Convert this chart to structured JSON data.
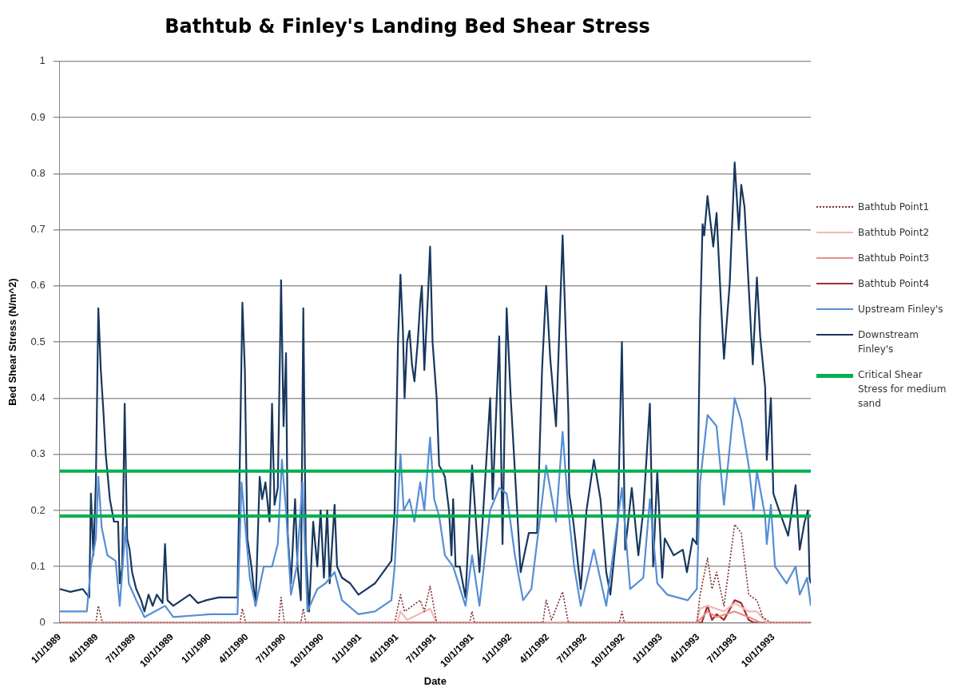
{
  "chart_data": {
    "type": "line",
    "title": "Bathtub & Finley's Landing Bed Shear Stress",
    "xlabel": "Date",
    "ylabel": "Bed Shear Stress (N/m^2)",
    "xlim": [
      "1989-01-01",
      "1993-12-31"
    ],
    "xticks": [
      {
        "value": "1989-01-01",
        "label": "1/1/1989"
      },
      {
        "value": "1989-04-01",
        "label": "4/1/1989"
      },
      {
        "value": "1989-07-01",
        "label": "7/1/1989"
      },
      {
        "value": "1989-10-01",
        "label": "10/1/1989"
      },
      {
        "value": "1990-01-01",
        "label": "1/1/1990"
      },
      {
        "value": "1990-04-01",
        "label": "4/1/1990"
      },
      {
        "value": "1990-07-01",
        "label": "7/1/1990"
      },
      {
        "value": "1990-10-01",
        "label": "10/1/1990"
      },
      {
        "value": "1991-01-01",
        "label": "1/1/1991"
      },
      {
        "value": "1991-04-01",
        "label": "4/1/1991"
      },
      {
        "value": "1991-07-01",
        "label": "7/1/1991"
      },
      {
        "value": "1991-10-01",
        "label": "10/1/1991"
      },
      {
        "value": "1992-01-01",
        "label": "1/1/1992"
      },
      {
        "value": "1992-04-01",
        "label": "4/1/1992"
      },
      {
        "value": "1992-07-01",
        "label": "7/1/1992"
      },
      {
        "value": "1992-10-01",
        "label": "10/1/1992"
      },
      {
        "value": "1993-01-01",
        "label": "1/1/1993"
      },
      {
        "value": "1993-04-01",
        "label": "4/1/1993"
      },
      {
        "value": "1993-07-01",
        "label": "7/1/1993"
      },
      {
        "value": "1993-10-01",
        "label": "10/1/1993"
      }
    ],
    "ylim": [
      0,
      1
    ],
    "yticks": [
      0,
      0.1,
      0.2,
      0.3,
      0.4,
      0.5,
      0.6,
      0.7,
      0.8,
      0.9,
      1
    ],
    "grid": "y",
    "legend": "right",
    "marker": "none",
    "ref_lines": [
      {
        "axis": "y",
        "value": 0.27,
        "label": "Critical Shear Stress for medium sand",
        "color": "#00b050"
      },
      {
        "axis": "y",
        "value": 0.19,
        "color": "#00b050"
      }
    ],
    "series": [
      {
        "name": "Bathtub Point1",
        "color": "#7b2c2c",
        "line_style": "dotted",
        "x": [
          "1989-01-01",
          "1989-03-30",
          "1989-04-05",
          "1989-04-15",
          "1990-03-15",
          "1990-03-21",
          "1990-03-29",
          "1990-06-17",
          "1990-06-23",
          "1990-07-01",
          "1990-08-10",
          "1990-08-16",
          "1990-08-22",
          "1991-03-26",
          "1991-04-09",
          "1991-04-19",
          "1991-05-27",
          "1991-06-06",
          "1991-06-20",
          "1991-07-06",
          "1991-09-24",
          "1991-09-30",
          "1991-10-06",
          "1992-03-20",
          "1992-03-28",
          "1992-04-10",
          "1992-05-07",
          "1992-05-21",
          "1992-09-22",
          "1992-09-28",
          "1992-10-04",
          "1993-03-29",
          "1993-04-06",
          "1993-04-24",
          "1993-05-05",
          "1993-05-16",
          "1993-06-03",
          "1993-06-29",
          "1993-07-15",
          "1993-08-02",
          "1993-08-22",
          "1993-09-05",
          "1993-09-25",
          "1993-12-31"
        ],
        "values": [
          0,
          0,
          0.03,
          0,
          0,
          0.025,
          0,
          0,
          0.045,
          0,
          0,
          0.025,
          0,
          0,
          0.05,
          0.02,
          0.04,
          0.02,
          0.065,
          0,
          0,
          0.02,
          0,
          0,
          0.04,
          0.005,
          0.055,
          0,
          0,
          0.02,
          0,
          0,
          0.05,
          0.115,
          0.06,
          0.09,
          0.03,
          0.175,
          0.16,
          0.05,
          0.04,
          0.01,
          0,
          0
        ]
      },
      {
        "name": "Bathtub Point2",
        "color": "#f2b8b5",
        "x": [
          "1989-01-01",
          "1991-04-01",
          "1991-04-09",
          "1991-04-25",
          "1991-06-20",
          "1991-07-06",
          "1993-03-29",
          "1993-04-06",
          "1993-04-24",
          "1993-06-03",
          "1993-06-29",
          "1993-08-02",
          "1993-08-22",
          "1993-09-15",
          "1993-12-31"
        ],
        "values": [
          0,
          0,
          0.02,
          0.005,
          0.025,
          0,
          0,
          0.025,
          0.03,
          0.02,
          0.035,
          0.02,
          0.02,
          0,
          0
        ]
      },
      {
        "name": "Bathtub Point3",
        "color": "#e6908c",
        "x": [
          "1989-01-01",
          "1993-03-29",
          "1993-04-24",
          "1993-05-16",
          "1993-06-29",
          "1993-08-02",
          "1993-09-01",
          "1993-12-31"
        ],
        "values": [
          0,
          0,
          0.02,
          0.01,
          0.02,
          0.01,
          0,
          0
        ]
      },
      {
        "name": "Bathtub Point4",
        "color": "#a52a2a",
        "x": [
          "1989-01-01",
          "1993-04-10",
          "1993-04-24",
          "1993-05-05",
          "1993-05-16",
          "1993-06-03",
          "1993-06-29",
          "1993-07-15",
          "1993-08-02",
          "1993-08-15",
          "1993-12-31"
        ],
        "values": [
          0,
          0,
          0.03,
          0.005,
          0.015,
          0.005,
          0.04,
          0.035,
          0.005,
          0,
          0
        ]
      },
      {
        "name": "Upstream Finley's",
        "color": "#558ed5",
        "x": [
          "1989-01-01",
          "1989-03-08",
          "1989-03-18",
          "1989-03-30",
          "1989-04-05",
          "1989-04-13",
          "1989-04-27",
          "1989-05-17",
          "1989-05-27",
          "1989-06-10",
          "1989-06-18",
          "1989-07-06",
          "1989-07-26",
          "1989-09-14",
          "1989-10-04",
          "1990-01-02",
          "1990-03-09",
          "1990-03-19",
          "1990-03-27",
          "1990-04-08",
          "1990-04-22",
          "1990-05-12",
          "1990-06-01",
          "1990-06-15",
          "1990-06-25",
          "1990-07-05",
          "1990-07-17",
          "1990-07-31",
          "1990-08-14",
          "1990-08-26",
          "1990-09-19",
          "1990-10-09",
          "1990-10-31",
          "1990-11-18",
          "1990-12-28",
          "1991-02-06",
          "1991-03-18",
          "1991-03-26",
          "1991-04-09",
          "1991-04-17",
          "1991-05-01",
          "1991-05-13",
          "1991-05-27",
          "1991-06-06",
          "1991-06-20",
          "1991-06-30",
          "1991-07-12",
          "1991-07-26",
          "1991-08-15",
          "1991-09-14",
          "1991-09-30",
          "1991-10-18",
          "1991-11-13",
          "1991-12-05",
          "1991-12-23",
          "1992-01-12",
          "1992-02-01",
          "1992-02-21",
          "1992-03-12",
          "1992-03-28",
          "1992-04-21",
          "1992-05-07",
          "1992-05-21",
          "1992-06-04",
          "1992-06-20",
          "1992-07-22",
          "1992-08-21",
          "1992-09-28",
          "1992-10-18",
          "1992-11-19",
          "1992-12-05",
          "1992-12-23",
          "1993-01-16",
          "1993-03-07",
          "1993-03-29",
          "1993-04-06",
          "1993-04-24",
          "1993-05-16",
          "1993-06-03",
          "1993-06-29",
          "1993-07-15",
          "1993-08-02",
          "1993-08-14",
          "1993-08-22",
          "1993-09-11",
          "1993-09-15",
          "1993-09-25",
          "1993-10-05",
          "1993-11-02",
          "1993-11-24",
          "1993-12-04",
          "1993-12-22",
          "1993-12-31"
        ],
        "values": [
          0.02,
          0.02,
          0.1,
          0.15,
          0.26,
          0.17,
          0.12,
          0.11,
          0.03,
          0.17,
          0.07,
          0.04,
          0.01,
          0.03,
          0.01,
          0.015,
          0.015,
          0.25,
          0.18,
          0.08,
          0.03,
          0.1,
          0.1,
          0.14,
          0.29,
          0.2,
          0.05,
          0.1,
          0.25,
          0.02,
          0.06,
          0.07,
          0.09,
          0.04,
          0.015,
          0.02,
          0.04,
          0.1,
          0.3,
          0.2,
          0.22,
          0.18,
          0.25,
          0.2,
          0.33,
          0.22,
          0.19,
          0.12,
          0.1,
          0.03,
          0.12,
          0.03,
          0.2,
          0.24,
          0.23,
          0.12,
          0.04,
          0.06,
          0.18,
          0.28,
          0.18,
          0.34,
          0.2,
          0.1,
          0.03,
          0.13,
          0.03,
          0.24,
          0.06,
          0.08,
          0.22,
          0.07,
          0.05,
          0.04,
          0.06,
          0.25,
          0.37,
          0.35,
          0.21,
          0.4,
          0.36,
          0.28,
          0.2,
          0.27,
          0.19,
          0.14,
          0.21,
          0.1,
          0.07,
          0.1,
          0.05,
          0.08,
          0.03
        ]
      },
      {
        "name": "Downstream Finley's",
        "color": "#17375e",
        "x": [
          "1989-01-01",
          "1989-01-27",
          "1989-02-26",
          "1989-03-14",
          "1989-03-18",
          "1989-03-24",
          "1989-03-30",
          "1989-04-05",
          "1989-04-11",
          "1989-04-17",
          "1989-04-23",
          "1989-05-03",
          "1989-05-13",
          "1989-05-23",
          "1989-05-27",
          "1989-06-02",
          "1989-06-08",
          "1989-06-14",
          "1989-06-20",
          "1989-06-26",
          "1989-07-06",
          "1989-07-18",
          "1989-07-26",
          "1989-08-05",
          "1989-08-15",
          "1989-08-25",
          "1989-09-08",
          "1989-09-14",
          "1989-09-20",
          "1989-10-04",
          "1989-10-24",
          "1989-11-13",
          "1989-12-03",
          "1989-12-23",
          "1990-01-22",
          "1990-03-09",
          "1990-03-15",
          "1990-03-21",
          "1990-03-27",
          "1990-04-02",
          "1990-04-12",
          "1990-04-22",
          "1990-05-02",
          "1990-05-08",
          "1990-05-16",
          "1990-05-26",
          "1990-06-01",
          "1990-06-07",
          "1990-06-15",
          "1990-06-23",
          "1990-06-29",
          "1990-07-05",
          "1990-07-09",
          "1990-07-17",
          "1990-07-27",
          "1990-08-02",
          "1990-08-10",
          "1990-08-16",
          "1990-08-22",
          "1990-08-30",
          "1990-09-09",
          "1990-09-19",
          "1990-09-27",
          "1990-10-05",
          "1990-10-13",
          "1990-10-19",
          "1990-10-31",
          "1990-11-06",
          "1990-11-18",
          "1990-12-08",
          "1990-12-28",
          "1991-01-17",
          "1991-02-06",
          "1991-03-18",
          "1991-03-26",
          "1991-04-03",
          "1991-04-09",
          "1991-04-15",
          "1991-04-19",
          "1991-04-25",
          "1991-05-01",
          "1991-05-07",
          "1991-05-13",
          "1991-05-21",
          "1991-05-27",
          "1991-05-31",
          "1991-06-06",
          "1991-06-14",
          "1991-06-20",
          "1991-06-26",
          "1991-07-06",
          "1991-07-12",
          "1991-07-20",
          "1991-07-26",
          "1991-08-05",
          "1991-08-11",
          "1991-08-15",
          "1991-08-21",
          "1991-08-31",
          "1991-09-14",
          "1991-09-30",
          "1991-10-18",
          "1991-11-13",
          "1991-11-19",
          "1991-12-05",
          "1991-12-13",
          "1991-12-23",
          "1992-01-02",
          "1992-01-26",
          "1992-02-15",
          "1992-03-06",
          "1992-03-18",
          "1992-03-28",
          "1992-04-07",
          "1992-04-21",
          "1992-05-07",
          "1992-05-21",
          "1992-05-23",
          "1992-06-02",
          "1992-06-20",
          "1992-07-04",
          "1992-07-22",
          "1992-08-07",
          "1992-08-21",
          "1992-08-31",
          "1992-09-18",
          "1992-09-28",
          "1992-10-06",
          "1992-10-22",
          "1992-11-07",
          "1992-11-19",
          "1992-12-05",
          "1992-12-13",
          "1992-12-23",
          "1993-01-04",
          "1993-01-10",
          "1993-02-01",
          "1993-02-23",
          "1993-03-05",
          "1993-03-19",
          "1993-03-29",
          "1993-04-06",
          "1993-04-12",
          "1993-04-16",
          "1993-04-24",
          "1993-05-08",
          "1993-05-16",
          "1993-05-26",
          "1993-06-03",
          "1993-06-17",
          "1993-06-29",
          "1993-07-09",
          "1993-07-15",
          "1993-07-23",
          "1993-08-02",
          "1993-08-12",
          "1993-08-22",
          "1993-08-30",
          "1993-09-11",
          "1993-09-15",
          "1993-09-25",
          "1993-10-01",
          "1993-10-15",
          "1993-11-06",
          "1993-11-24",
          "1993-12-04",
          "1993-12-16",
          "1993-12-24",
          "1993-12-28",
          "1993-12-31"
        ],
        "values": [
          0.06,
          0.055,
          0.06,
          0.045,
          0.23,
          0.12,
          0.25,
          0.56,
          0.45,
          0.38,
          0.3,
          0.22,
          0.18,
          0.18,
          0.07,
          0.1,
          0.39,
          0.15,
          0.13,
          0.09,
          0.06,
          0.04,
          0.02,
          0.05,
          0.03,
          0.05,
          0.035,
          0.14,
          0.04,
          0.03,
          0.04,
          0.05,
          0.035,
          0.04,
          0.045,
          0.045,
          0.3,
          0.57,
          0.45,
          0.15,
          0.1,
          0.03,
          0.26,
          0.22,
          0.25,
          0.18,
          0.39,
          0.21,
          0.24,
          0.61,
          0.35,
          0.48,
          0.16,
          0.07,
          0.22,
          0.1,
          0.04,
          0.56,
          0.13,
          0.02,
          0.18,
          0.1,
          0.2,
          0.08,
          0.2,
          0.07,
          0.21,
          0.1,
          0.08,
          0.07,
          0.05,
          0.06,
          0.07,
          0.11,
          0.2,
          0.5,
          0.62,
          0.52,
          0.4,
          0.5,
          0.52,
          0.46,
          0.43,
          0.5,
          0.57,
          0.6,
          0.45,
          0.57,
          0.67,
          0.5,
          0.4,
          0.28,
          0.27,
          0.26,
          0.2,
          0.12,
          0.22,
          0.1,
          0.1,
          0.045,
          0.28,
          0.09,
          0.4,
          0.22,
          0.51,
          0.14,
          0.56,
          0.4,
          0.09,
          0.16,
          0.16,
          0.45,
          0.6,
          0.47,
          0.35,
          0.69,
          0.37,
          0.23,
          0.18,
          0.06,
          0.2,
          0.29,
          0.22,
          0.09,
          0.05,
          0.18,
          0.5,
          0.13,
          0.24,
          0.12,
          0.2,
          0.39,
          0.1,
          0.27,
          0.08,
          0.15,
          0.12,
          0.13,
          0.09,
          0.15,
          0.14,
          0.535,
          0.71,
          0.69,
          0.76,
          0.67,
          0.73,
          0.58,
          0.47,
          0.605,
          0.82,
          0.7,
          0.78,
          0.74,
          0.6,
          0.46,
          0.615,
          0.51,
          0.42,
          0.29,
          0.4,
          0.23,
          0.2,
          0.155,
          0.245,
          0.13,
          0.18,
          0.2,
          0.08,
          0.07
        ]
      }
    ]
  }
}
